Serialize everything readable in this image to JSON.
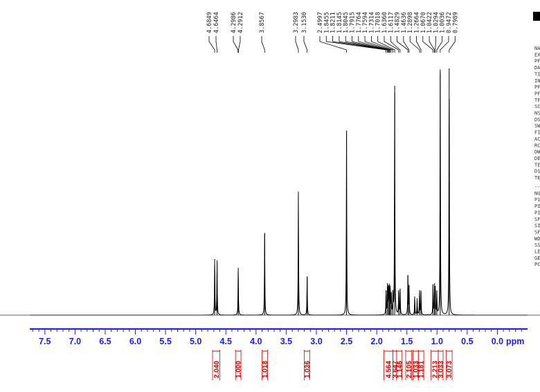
{
  "chart_data": {
    "type": "nmr-spectrum",
    "xlabel": "ppm",
    "xlim": [
      7.75,
      -0.5
    ],
    "ticks": [
      7.5,
      7.0,
      6.5,
      6.0,
      5.5,
      5.0,
      4.5,
      4.0,
      3.5,
      3.0,
      2.5,
      2.0,
      1.5,
      1.0,
      0.5,
      0.0
    ],
    "tick_labels": [
      "7.5",
      "7.0",
      "6.5",
      "6.0",
      "5.5",
      "5.0",
      "4.5",
      "4.0",
      "3.5",
      "3.0",
      "2.5",
      "2.0",
      "1.5",
      "1.0",
      "0.5",
      "0.0"
    ],
    "peak_labels": [
      "4.6849",
      "4.6464",
      "4.2986",
      "4.2912",
      "3.8567",
      "3.2983",
      "3.1530",
      "2.4997",
      "1.8455",
      "1.8211",
      "1.8145",
      "1.8045",
      "1.7915",
      "1.7764",
      "1.7594",
      "1.7314",
      "1.7018",
      "1.6360",
      "1.6117",
      "1.4829",
      "1.4636",
      "1.2898",
      "1.2664",
      "1.0670",
      "1.0422",
      "1.0294",
      "1.0036",
      "0.9472",
      "0.7989"
    ],
    "peaks": [
      {
        "ppm": 4.685,
        "height": 0.225
      },
      {
        "ppm": 4.646,
        "height": 0.22
      },
      {
        "ppm": 4.295,
        "height": 0.19
      },
      {
        "ppm": 3.857,
        "height": 0.33
      },
      {
        "ppm": 3.298,
        "height": 0.495
      },
      {
        "ppm": 3.153,
        "height": 0.155
      },
      {
        "ppm": 2.5,
        "height": 0.74
      },
      {
        "ppm": 1.845,
        "height": 0.1
      },
      {
        "ppm": 1.821,
        "height": 0.115
      },
      {
        "ppm": 1.805,
        "height": 0.11
      },
      {
        "ppm": 1.791,
        "height": 0.105
      },
      {
        "ppm": 1.776,
        "height": 0.1
      },
      {
        "ppm": 1.759,
        "height": 0.09
      },
      {
        "ppm": 1.731,
        "height": 0.08
      },
      {
        "ppm": 1.702,
        "height": 0.92
      },
      {
        "ppm": 1.636,
        "height": 0.1
      },
      {
        "ppm": 1.612,
        "height": 0.105
      },
      {
        "ppm": 1.483,
        "height": 0.16
      },
      {
        "ppm": 1.464,
        "height": 0.12
      },
      {
        "ppm": 1.37,
        "height": 0.075
      },
      {
        "ppm": 1.33,
        "height": 0.065
      },
      {
        "ppm": 1.29,
        "height": 0.1
      },
      {
        "ppm": 1.266,
        "height": 0.095
      },
      {
        "ppm": 1.067,
        "height": 0.12
      },
      {
        "ppm": 1.042,
        "height": 0.115
      },
      {
        "ppm": 1.029,
        "height": 0.105
      },
      {
        "ppm": 1.004,
        "height": 0.09
      },
      {
        "ppm": 0.947,
        "height": 0.985
      },
      {
        "ppm": 0.799,
        "height": 0.99
      }
    ],
    "integrals": [
      {
        "from": 4.72,
        "to": 4.6,
        "value": "2.040"
      },
      {
        "from": 4.34,
        "to": 4.25,
        "value": "1.000"
      },
      {
        "from": 3.9,
        "to": 3.81,
        "value": "1.018"
      },
      {
        "from": 3.2,
        "to": 3.11,
        "value": "1.036"
      },
      {
        "from": 1.88,
        "to": 1.73,
        "value": "4.564"
      },
      {
        "from": 1.73,
        "to": 1.67,
        "value": "3.647"
      },
      {
        "from": 1.67,
        "to": 1.58,
        "value": "1.146"
      },
      {
        "from": 1.52,
        "to": 1.42,
        "value": "2.105"
      },
      {
        "from": 1.4,
        "to": 1.31,
        "value": "1.033"
      },
      {
        "from": 1.31,
        "to": 1.22,
        "value": "1.181"
      },
      {
        "from": 1.1,
        "to": 0.98,
        "value": "2.213"
      },
      {
        "from": 0.98,
        "to": 0.9,
        "value": "3.033"
      },
      {
        "from": 0.85,
        "to": 0.75,
        "value": "3.073"
      }
    ],
    "colors": {
      "spectrum": "#000000",
      "axis": "#1a1aff",
      "integral": "#e00000"
    }
  },
  "side_panel": {
    "param_letters": [
      "NA",
      "EX",
      "PF",
      "DA",
      "TI",
      "IN",
      "PF",
      "PF",
      "TF",
      "SC",
      "NS",
      "DS",
      "SW",
      "FI",
      "AC",
      "RC",
      "DW",
      "DE",
      "TE",
      "D1",
      "TE",
      "--",
      "NU",
      "P1",
      "PI",
      "PI",
      "SF",
      "SI",
      "SF",
      "WD",
      "SS",
      "LE",
      "GE",
      "PC"
    ]
  }
}
